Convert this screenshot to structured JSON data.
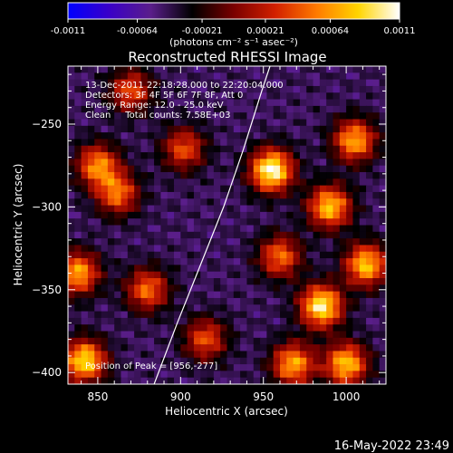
{
  "colorbar": {
    "tick_labels": [
      "-0.0011",
      "-0.00064",
      "-0.00021",
      "0.00021",
      "0.00064",
      "0.0011"
    ],
    "tick_values": [
      -0.0011,
      -0.00064,
      -0.00021,
      0.00021,
      0.00064,
      0.0011
    ],
    "range": [
      -0.0011,
      0.0011
    ],
    "unit_label": "(photons cm⁻² s⁻¹ asec⁻²)",
    "colors": [
      "#0000ff",
      "#3a00c8",
      "#5a1e8a",
      "#000000",
      "#7a0000",
      "#d22000",
      "#ff7a00",
      "#ffd400",
      "#ffffff"
    ]
  },
  "chart_data": {
    "type": "heatmap",
    "title": "Reconstructed RHESSI Image",
    "xlabel": "Heliocentric X (arcsec)",
    "ylabel": "Heliocentric Y (arcsec)",
    "xlim": [
      832,
      1024
    ],
    "ylim": [
      -407,
      -215
    ],
    "x_ticks": [
      850,
      900,
      950,
      1000
    ],
    "y_ticks": [
      -400,
      -350,
      -300,
      -250
    ],
    "x_tick_labels": [
      "850",
      "900",
      "950",
      "1000"
    ],
    "y_tick_labels": [
      "-400",
      "-350",
      "-300",
      "-250"
    ],
    "annotations": [
      "13-Dec-2011 22:18:28.000 to 22:20:04.000",
      "Detectors: 3F 4F 5F 6F 7F 8F, Att 0",
      "Energy Range: 12.0 - 25.0 keV",
      "Clean     Total counts: 7.58E+03"
    ],
    "peak_label": "Position of Peak = [956,-277]",
    "peak": [
      956,
      -277
    ],
    "limb_curve": [
      [
        884,
        -407
      ],
      [
        898,
        -370
      ],
      [
        912,
        -335
      ],
      [
        926,
        -300
      ],
      [
        938,
        -265
      ],
      [
        949,
        -230
      ],
      [
        954,
        -215
      ]
    ],
    "bright_regions": [
      {
        "x": 955,
        "y": -278,
        "level": 0.0011
      },
      {
        "x": 985,
        "y": -360,
        "level": 0.001
      },
      {
        "x": 990,
        "y": -300,
        "level": 0.0008
      },
      {
        "x": 1005,
        "y": -260,
        "level": 0.0007
      },
      {
        "x": 1012,
        "y": -335,
        "level": 0.0008
      },
      {
        "x": 960,
        "y": -330,
        "level": 0.0005
      },
      {
        "x": 968,
        "y": -395,
        "level": 0.0007
      },
      {
        "x": 1000,
        "y": -395,
        "level": 0.0008
      },
      {
        "x": 850,
        "y": -275,
        "level": 0.0006
      },
      {
        "x": 862,
        "y": -292,
        "level": 0.0005
      },
      {
        "x": 838,
        "y": -340,
        "level": 0.0007
      },
      {
        "x": 842,
        "y": -393,
        "level": 0.0009
      },
      {
        "x": 880,
        "y": -350,
        "level": 0.0005
      },
      {
        "x": 902,
        "y": -265,
        "level": 0.0004
      },
      {
        "x": 915,
        "y": -380,
        "level": 0.0004
      },
      {
        "x": 870,
        "y": -230,
        "level": 0.0004
      }
    ]
  },
  "footer": {
    "timestamp": "16-May-2022 23:49"
  }
}
